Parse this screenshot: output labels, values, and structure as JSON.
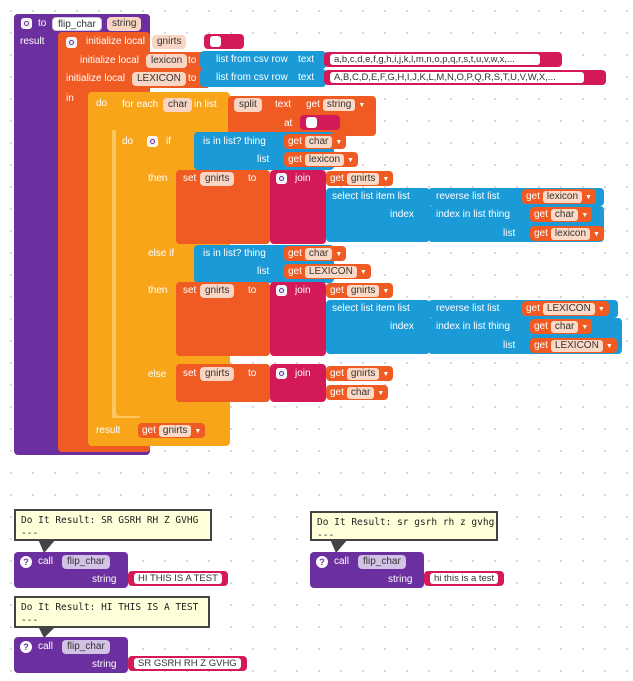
{
  "procedure": {
    "to_label": "to",
    "name": "flip_char",
    "param": "string",
    "result_label": "result"
  },
  "init": {
    "label": "initialize local",
    "to_label": "to",
    "var1": "gnirts",
    "var2": "lexicon",
    "var3": "LEXICON",
    "csv_label": "list from csv row",
    "text_label": "text",
    "lower_csv": "a,b,c,d,e,f,g,h,i,j,k,l,m,n,o,p,q,r,s,t,u,v,w,x,...",
    "upper_csv": "A,B,C,D,E,F,G,H,I,J,K,L,M,N,O,P,Q,R,S,T,U,V,W,X,...",
    "in_label": "in"
  },
  "loop": {
    "do_label": "do",
    "for_each_label": "for each",
    "item_var": "char",
    "in_list_label": "in list",
    "split_label": "split",
    "text_label": "text",
    "at_label": "at",
    "get_label": "get"
  },
  "ifblock": {
    "do_label": "do",
    "if_label": "if",
    "is_in_list_label": "is in list? thing",
    "list_label": "list",
    "then_label": "then",
    "else_if_label": "else if",
    "else_label": "else",
    "set_label": "set",
    "to_label": "to",
    "join_label": "join",
    "select_label": "select list item  list",
    "index_label": "index",
    "reverse_label": "reverse list  list",
    "index_in_list_label": "index in list  thing",
    "list2_label": "list"
  },
  "outer_result": {
    "label": "result"
  },
  "calls": {
    "call_label": "call",
    "proc_name": "flip_char",
    "string_label": "string",
    "c1_arg": "HI THIS IS A TEST",
    "c1_result": "Do It Result: SR GSRH RH Z GVHG\n---",
    "c2_arg": "hi this is a test",
    "c2_result": "Do It Result: sr gsrh rh z gvhg\n---",
    "c3_arg": "SR GSRH RH Z GVHG",
    "c3_result": "Do It Result: HI THIS IS A TEST\n---"
  },
  "colors": {
    "procedure": "#6b2fa0",
    "variable": "#f05a23",
    "control": "#f9a51a",
    "list": "#1a9ad6",
    "text": "#d3195a"
  }
}
